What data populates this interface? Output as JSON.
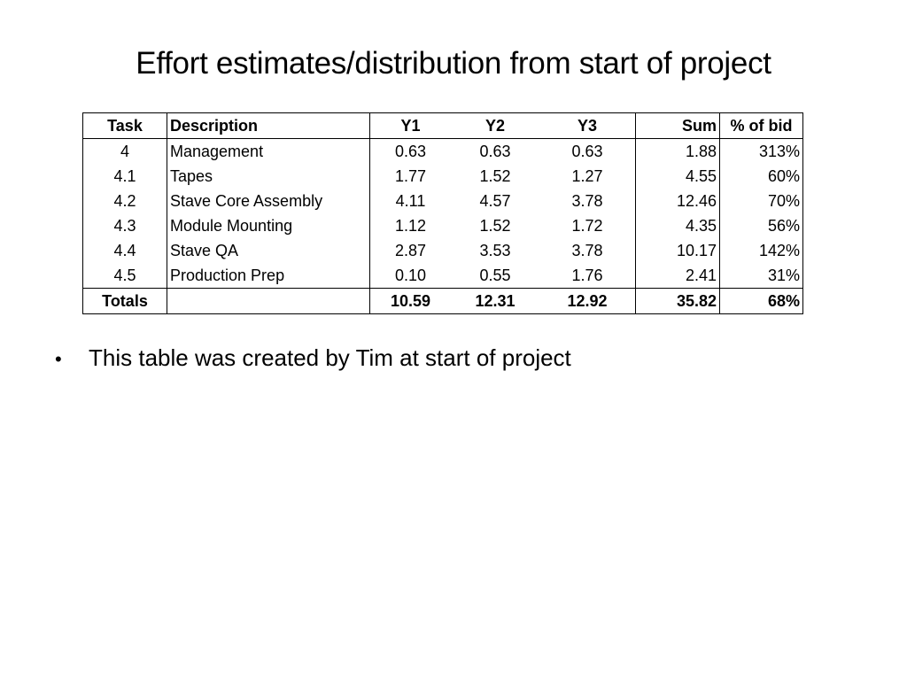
{
  "slide": {
    "title": "Effort estimates/distribution from start of project"
  },
  "table": {
    "headers": {
      "task": "Task",
      "description": "Description",
      "y1": "Y1",
      "y2": "Y2",
      "y3": "Y3",
      "sum": "Sum",
      "pct_of_bid": "% of bid"
    },
    "rows": [
      {
        "task": "4",
        "description": "Management",
        "y1": "0.63",
        "y2": "0.63",
        "y3": "0.63",
        "sum": "1.88",
        "pct_of_bid": "313%"
      },
      {
        "task": "4.1",
        "description": "Tapes",
        "y1": "1.77",
        "y2": "1.52",
        "y3": "1.27",
        "sum": "4.55",
        "pct_of_bid": "60%"
      },
      {
        "task": "4.2",
        "description": "Stave Core Assembly",
        "y1": "4.11",
        "y2": "4.57",
        "y3": "3.78",
        "sum": "12.46",
        "pct_of_bid": "70%"
      },
      {
        "task": "4.3",
        "description": "Module Mounting",
        "y1": "1.12",
        "y2": "1.52",
        "y3": "1.72",
        "sum": "4.35",
        "pct_of_bid": "56%"
      },
      {
        "task": "4.4",
        "description": "Stave QA",
        "y1": "2.87",
        "y2": "3.53",
        "y3": "3.78",
        "sum": "10.17",
        "pct_of_bid": "142%"
      },
      {
        "task": "4.5",
        "description": "Production Prep",
        "y1": "0.10",
        "y2": "0.55",
        "y3": "1.76",
        "sum": "2.41",
        "pct_of_bid": "31%"
      }
    ],
    "totals": {
      "label": "Totals",
      "description": "",
      "y1": "10.59",
      "y2": "12.31",
      "y3": "12.92",
      "sum": "35.82",
      "pct_of_bid": "68%"
    }
  },
  "bullets": [
    {
      "marker": "•",
      "text": "This table was created by Tim at start of project"
    }
  ]
}
